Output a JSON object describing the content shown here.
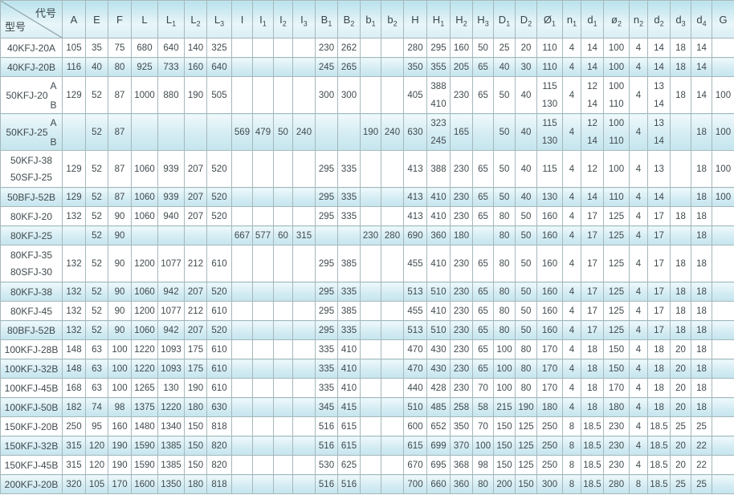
{
  "table": {
    "corner": {
      "top": "代号",
      "bottom": "型号"
    },
    "columns": [
      {
        "key": "A",
        "m": "A",
        "s": ""
      },
      {
        "key": "E",
        "m": "E",
        "s": ""
      },
      {
        "key": "F",
        "m": "F",
        "s": ""
      },
      {
        "key": "L",
        "m": "L",
        "s": ""
      },
      {
        "key": "L1",
        "m": "L",
        "s": "1"
      },
      {
        "key": "L2",
        "m": "L",
        "s": "2"
      },
      {
        "key": "L3",
        "m": "L",
        "s": "3"
      },
      {
        "key": "I",
        "m": "I",
        "s": ""
      },
      {
        "key": "I1",
        "m": "I",
        "s": "1"
      },
      {
        "key": "I2",
        "m": "I",
        "s": "2"
      },
      {
        "key": "I3",
        "m": "I",
        "s": "3"
      },
      {
        "key": "B1",
        "m": "B",
        "s": "1"
      },
      {
        "key": "B2",
        "m": "B",
        "s": "2"
      },
      {
        "key": "b1",
        "m": "b",
        "s": "1"
      },
      {
        "key": "b2",
        "m": "b",
        "s": "2"
      },
      {
        "key": "H",
        "m": "H",
        "s": ""
      },
      {
        "key": "H1",
        "m": "H",
        "s": "1"
      },
      {
        "key": "H2",
        "m": "H",
        "s": "2"
      },
      {
        "key": "H3",
        "m": "H",
        "s": "3"
      },
      {
        "key": "D1",
        "m": "D",
        "s": "1"
      },
      {
        "key": "D2",
        "m": "D",
        "s": "2"
      },
      {
        "key": "phi1",
        "m": "Ø",
        "s": "1"
      },
      {
        "key": "n1",
        "m": "n",
        "s": "1"
      },
      {
        "key": "d1",
        "m": "d",
        "s": "1"
      },
      {
        "key": "phi2",
        "m": "ø",
        "s": "2"
      },
      {
        "key": "n2",
        "m": "n",
        "s": "2"
      },
      {
        "key": "d2",
        "m": "d",
        "s": "2"
      },
      {
        "key": "d3",
        "m": "d",
        "s": "3"
      },
      {
        "key": "d4",
        "m": "d",
        "s": "4"
      },
      {
        "key": "G",
        "m": "G",
        "s": ""
      }
    ],
    "rows": [
      {
        "models": [
          "40KFJ-20A"
        ],
        "shaded": false,
        "tall": false,
        "cells": [
          "105",
          "35",
          "75",
          "680",
          "640",
          "140",
          "325",
          "",
          "",
          "",
          "",
          "230",
          "262",
          "",
          "",
          "280",
          "295",
          "160",
          "50",
          "25",
          "20",
          "110",
          "4",
          "14",
          "100",
          "4",
          "14",
          "18",
          "14",
          ""
        ]
      },
      {
        "models": [
          "40KFJ-20B"
        ],
        "shaded": true,
        "tall": false,
        "cells": [
          "116",
          "40",
          "80",
          "925",
          "733",
          "160",
          "640",
          "",
          "",
          "",
          "",
          "245",
          "265",
          "",
          "",
          "350",
          "355",
          "205",
          "65",
          "40",
          "30",
          "110",
          "4",
          "14",
          "100",
          "4",
          "14",
          "18",
          "14",
          ""
        ]
      },
      {
        "models": [
          "50KFJ-20"
        ],
        "ab": [
          "A",
          "B"
        ],
        "shaded": false,
        "tall": true,
        "cells": [
          "129",
          "52",
          "87",
          "1000",
          "880",
          "190",
          "505",
          "",
          "",
          "",
          "",
          "300",
          "300",
          "",
          "",
          "405",
          [
            "388",
            "410"
          ],
          "230",
          "65",
          "50",
          "40",
          [
            "115",
            "130"
          ],
          "4",
          [
            "12",
            "14"
          ],
          [
            "100",
            "110"
          ],
          "4",
          [
            "13",
            "14"
          ],
          "18",
          "14",
          "100"
        ]
      },
      {
        "models": [
          "50KFJ-25"
        ],
        "ab": [
          "A",
          "B"
        ],
        "shaded": true,
        "tall": true,
        "cells": [
          "",
          "52",
          "87",
          "",
          "",
          "",
          "",
          "569",
          "479",
          "50",
          "240",
          "",
          "",
          "190",
          "240",
          "630",
          [
            "323",
            "245"
          ],
          "165",
          "",
          "50",
          "40",
          [
            "115",
            "130"
          ],
          "4",
          [
            "12",
            "14"
          ],
          [
            "100",
            "110"
          ],
          "4",
          [
            "13",
            "14"
          ],
          "",
          "18",
          "100"
        ]
      },
      {
        "models": [
          "50KFJ-38",
          "50SFJ-25"
        ],
        "shaded": false,
        "tall": true,
        "cells": [
          "129",
          "52",
          "87",
          "1060",
          "939",
          "207",
          "520",
          "",
          "",
          "",
          "",
          "295",
          "335",
          "",
          "",
          "413",
          "388",
          "230",
          "65",
          "50",
          "40",
          "115",
          "4",
          "12",
          "100",
          "4",
          "13",
          "",
          "18",
          "100"
        ]
      },
      {
        "models": [
          "50BFJ-52B"
        ],
        "shaded": true,
        "tall": false,
        "cells": [
          "129",
          "52",
          "87",
          "1060",
          "939",
          "207",
          "520",
          "",
          "",
          "",
          "",
          "295",
          "335",
          "",
          "",
          "413",
          "410",
          "230",
          "65",
          "50",
          "40",
          "130",
          "4",
          "14",
          "110",
          "4",
          "14",
          "",
          "18",
          "100"
        ]
      },
      {
        "models": [
          "80KFJ-20"
        ],
        "shaded": false,
        "tall": false,
        "cells": [
          "132",
          "52",
          "90",
          "1060",
          "940",
          "207",
          "520",
          "",
          "",
          "",
          "",
          "295",
          "335",
          "",
          "",
          "413",
          "410",
          "230",
          "65",
          "80",
          "50",
          "160",
          "4",
          "17",
          "125",
          "4",
          "17",
          "18",
          "18",
          ""
        ]
      },
      {
        "models": [
          "80KFJ-25"
        ],
        "shaded": true,
        "tall": false,
        "cells": [
          "",
          "52",
          "90",
          "",
          "",
          "",
          "",
          "667",
          "577",
          "60",
          "315",
          "",
          "",
          "230",
          "280",
          "690",
          "360",
          "180",
          "",
          "80",
          "50",
          "160",
          "4",
          "17",
          "125",
          "4",
          "17",
          "",
          "18",
          ""
        ]
      },
      {
        "models": [
          "80KFJ-35",
          "80SFJ-30"
        ],
        "shaded": false,
        "tall": true,
        "cells": [
          "132",
          "52",
          "90",
          "1200",
          "1077",
          "212",
          "610",
          "",
          "",
          "",
          "",
          "295",
          "385",
          "",
          "",
          "455",
          "410",
          "230",
          "65",
          "80",
          "50",
          "160",
          "4",
          "17",
          "125",
          "4",
          "17",
          "18",
          "18",
          ""
        ]
      },
      {
        "models": [
          "80KFJ-38"
        ],
        "shaded": true,
        "tall": false,
        "cells": [
          "132",
          "52",
          "90",
          "1060",
          "942",
          "207",
          "520",
          "",
          "",
          "",
          "",
          "295",
          "335",
          "",
          "",
          "513",
          "510",
          "230",
          "65",
          "80",
          "50",
          "160",
          "4",
          "17",
          "125",
          "4",
          "17",
          "18",
          "18",
          ""
        ]
      },
      {
        "models": [
          "80KFJ-45"
        ],
        "shaded": false,
        "tall": false,
        "cells": [
          "132",
          "52",
          "90",
          "1200",
          "1077",
          "212",
          "610",
          "",
          "",
          "",
          "",
          "295",
          "385",
          "",
          "",
          "455",
          "410",
          "230",
          "65",
          "80",
          "50",
          "160",
          "4",
          "17",
          "125",
          "4",
          "17",
          "18",
          "18",
          ""
        ]
      },
      {
        "models": [
          "80BFJ-52B"
        ],
        "shaded": true,
        "tall": false,
        "cells": [
          "132",
          "52",
          "90",
          "1060",
          "942",
          "207",
          "520",
          "",
          "",
          "",
          "",
          "295",
          "335",
          "",
          "",
          "513",
          "510",
          "230",
          "65",
          "80",
          "50",
          "160",
          "4",
          "17",
          "125",
          "4",
          "17",
          "18",
          "18",
          ""
        ]
      },
      {
        "models": [
          "100KFJ-28B"
        ],
        "shaded": false,
        "tall": false,
        "cells": [
          "148",
          "63",
          "100",
          "1220",
          "1093",
          "175",
          "610",
          "",
          "",
          "",
          "",
          "335",
          "410",
          "",
          "",
          "470",
          "430",
          "230",
          "65",
          "100",
          "80",
          "170",
          "4",
          "18",
          "150",
          "4",
          "18",
          "20",
          "18",
          ""
        ]
      },
      {
        "models": [
          "100KFJ-32B"
        ],
        "shaded": true,
        "tall": false,
        "cells": [
          "148",
          "63",
          "100",
          "1220",
          "1093",
          "175",
          "610",
          "",
          "",
          "",
          "",
          "335",
          "410",
          "",
          "",
          "470",
          "430",
          "230",
          "65",
          "100",
          "80",
          "170",
          "4",
          "18",
          "150",
          "4",
          "18",
          "20",
          "18",
          ""
        ]
      },
      {
        "models": [
          "100KFJ-45B"
        ],
        "shaded": false,
        "tall": false,
        "cells": [
          "168",
          "63",
          "100",
          "1265",
          "130",
          "190",
          "610",
          "",
          "",
          "",
          "",
          "335",
          "410",
          "",
          "",
          "440",
          "428",
          "230",
          "70",
          "100",
          "80",
          "170",
          "4",
          "18",
          "170",
          "4",
          "18",
          "20",
          "18",
          ""
        ]
      },
      {
        "models": [
          "100KFJ-50B"
        ],
        "shaded": true,
        "tall": false,
        "cells": [
          "182",
          "74",
          "98",
          "1375",
          "1220",
          "180",
          "630",
          "",
          "",
          "",
          "",
          "345",
          "415",
          "",
          "",
          "510",
          "485",
          "258",
          "58",
          "215",
          "190",
          "180",
          "4",
          "18",
          "180",
          "4",
          "18",
          "20",
          "18",
          ""
        ]
      },
      {
        "models": [
          "150KFJ-20B"
        ],
        "shaded": false,
        "tall": false,
        "cells": [
          "250",
          "95",
          "160",
          "1480",
          "1340",
          "150",
          "818",
          "",
          "",
          "",
          "",
          "516",
          "615",
          "",
          "",
          "600",
          "652",
          "350",
          "70",
          "150",
          "125",
          "250",
          "8",
          "18.5",
          "230",
          "4",
          "18.5",
          "25",
          "25",
          ""
        ]
      },
      {
        "models": [
          "150KFJ-32B"
        ],
        "shaded": true,
        "tall": false,
        "cells": [
          "315",
          "120",
          "190",
          "1590",
          "1385",
          "150",
          "820",
          "",
          "",
          "",
          "",
          "516",
          "615",
          "",
          "",
          "615",
          "699",
          "370",
          "100",
          "150",
          "125",
          "250",
          "8",
          "18.5",
          "230",
          "4",
          "18.5",
          "20",
          "22",
          ""
        ]
      },
      {
        "models": [
          "150KFJ-45B"
        ],
        "shaded": false,
        "tall": false,
        "cells": [
          "315",
          "120",
          "190",
          "1590",
          "1385",
          "150",
          "820",
          "",
          "",
          "",
          "",
          "530",
          "625",
          "",
          "",
          "670",
          "695",
          "368",
          "98",
          "150",
          "125",
          "250",
          "8",
          "18.5",
          "230",
          "4",
          "18.5",
          "20",
          "22",
          ""
        ]
      },
      {
        "models": [
          "200KFJ-20B"
        ],
        "shaded": true,
        "tall": false,
        "cells": [
          "320",
          "105",
          "170",
          "1600",
          "1350",
          "180",
          "818",
          "",
          "",
          "",
          "",
          "516",
          "516",
          "",
          "",
          "700",
          "660",
          "360",
          "80",
          "200",
          "150",
          "300",
          "8",
          "18.5",
          "280",
          "8",
          "18.5",
          "25",
          "25",
          ""
        ]
      }
    ]
  }
}
